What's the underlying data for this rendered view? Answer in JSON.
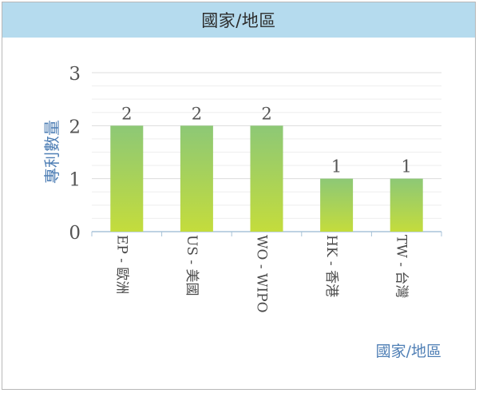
{
  "header": {
    "title": "國家/地區"
  },
  "chart_data": {
    "type": "bar",
    "title": "國家/地區",
    "xlabel": "國家/地區",
    "ylabel": "專利數量",
    "categories": [
      "EP - 歐洲",
      "US - 美國",
      "WO - WIPO",
      "HK - 香港",
      "TW - 台灣"
    ],
    "values": [
      2,
      2,
      2,
      1,
      1
    ],
    "ylim": [
      0,
      3
    ],
    "yticks": [
      "0",
      "1",
      "2",
      "3"
    ],
    "data_labels": [
      "2",
      "2",
      "2",
      "1",
      "1"
    ],
    "grid": true,
    "legend": "none",
    "colors": {
      "bar_top": "#8dc876",
      "bar_bottom": "#c4dc3c",
      "axis_label": "#4f7fb5",
      "gridline": "#e3e3e3",
      "title_bar": "#b5dbee"
    }
  }
}
